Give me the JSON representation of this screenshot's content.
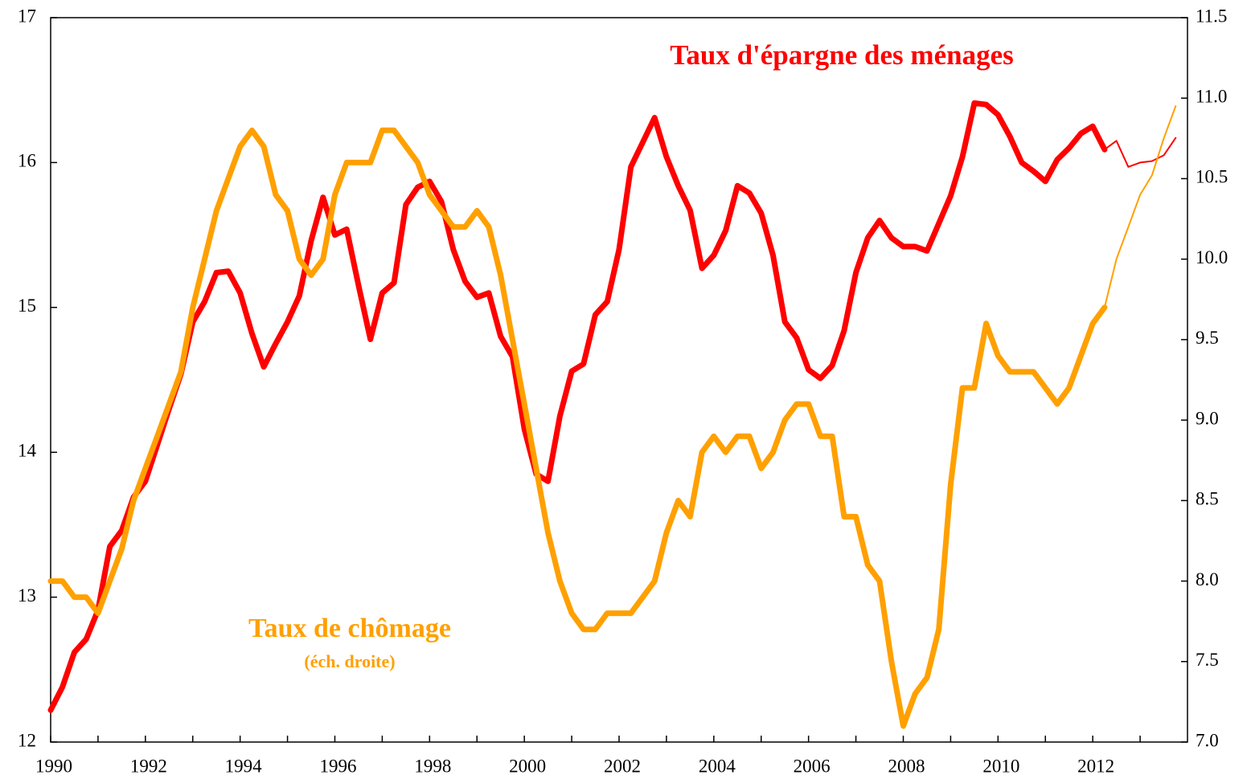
{
  "chart_data": {
    "type": "line",
    "annotations": {
      "savings": "Taux d'épargne des ménages",
      "unemployment": "Taux de chômage",
      "unemployment_note": "(éch. droite)"
    },
    "xlim": [
      1990,
      2014
    ],
    "xticks": [
      1990,
      1992,
      1994,
      1996,
      1998,
      2000,
      2002,
      2004,
      2006,
      2008,
      2010,
      2012
    ],
    "xminorticks": [
      1991,
      1993,
      1995,
      1997,
      1999,
      2001,
      2003,
      2005,
      2007,
      2009,
      2011,
      2013
    ],
    "ylim": [
      12,
      17
    ],
    "yticks": [
      12,
      13,
      14,
      15,
      16,
      17
    ],
    "y2lim": [
      7,
      11.5
    ],
    "y2ticks": [
      {
        "value": 7,
        "label": "7.0"
      },
      7.5,
      {
        "value": 8,
        "label": "8.0"
      },
      8.5,
      {
        "value": 9,
        "label": "9.0"
      },
      9.5,
      {
        "value": 10,
        "label": "10.0"
      },
      10.5,
      {
        "value": 11,
        "label": "11.0"
      },
      11.5
    ],
    "series": [
      {
        "name": "Taux d'épargne des ménages",
        "color": "#ff0000",
        "line_width": 7,
        "x": [
          1990,
          1990.25,
          1990.5,
          1990.75,
          1991,
          1991.25,
          1991.5,
          1991.75,
          1992,
          1992.25,
          1992.5,
          1992.75,
          1993,
          1993.25,
          1993.5,
          1993.75,
          1994,
          1994.25,
          1994.5,
          1994.75,
          1995,
          1995.25,
          1995.5,
          1995.75,
          1996,
          1996.25,
          1996.5,
          1996.75,
          1997,
          1997.25,
          1997.5,
          1997.75,
          1998,
          1998.25,
          1998.5,
          1998.75,
          1999,
          1999.25,
          1999.5,
          1999.75,
          2000,
          2000.25,
          2000.5,
          2000.75,
          2001,
          2001.25,
          2001.5,
          2001.75,
          2002,
          2002.25,
          2002.5,
          2002.75,
          2003,
          2003.25,
          2003.5,
          2003.75,
          2004,
          2004.25,
          2004.5,
          2004.75,
          2005,
          2005.25,
          2005.5,
          2005.75,
          2006,
          2006.25,
          2006.5,
          2006.75,
          2007,
          2007.25,
          2007.5,
          2007.75,
          2008,
          2008.25,
          2008.5,
          2008.75,
          2009,
          2009.25,
          2009.5,
          2009.75,
          2010,
          2010.25,
          2010.5,
          2010.75,
          2011,
          2011.25,
          2011.5,
          2011.75,
          2012,
          2012.25
        ],
        "values": [
          12.22,
          12.38,
          12.62,
          12.71,
          12.91,
          13.35,
          13.46,
          13.69,
          13.8,
          14.05,
          14.3,
          14.54,
          14.9,
          15.04,
          15.24,
          15.25,
          15.1,
          14.82,
          14.59,
          14.75,
          14.9,
          15.08,
          15.46,
          15.76,
          15.5,
          15.54,
          15.15,
          14.78,
          15.1,
          15.17,
          15.71,
          15.83,
          15.87,
          15.73,
          15.4,
          15.18,
          15.07,
          15.1,
          14.8,
          14.66,
          14.16,
          13.85,
          13.8,
          14.25,
          14.56,
          14.61,
          14.95,
          15.04,
          15.4,
          15.97,
          16.14,
          16.31,
          16.04,
          15.84,
          15.67,
          15.27,
          15.36,
          15.53,
          15.84,
          15.79,
          15.65,
          15.36,
          14.9,
          14.79,
          14.57,
          14.51,
          14.6,
          14.84,
          15.24,
          15.48,
          15.6,
          15.48,
          15.42,
          15.42,
          15.39,
          15.58,
          15.77,
          16.04,
          16.41,
          16.4,
          16.33,
          16.18,
          16,
          15.94,
          15.87,
          16.02,
          16.1,
          16.2,
          16.25,
          16.09
        ]
      },
      {
        "color": "#ff0000",
        "line_width": 2,
        "x": [
          2012.25,
          2012.5,
          2012.75,
          2013,
          2013.25,
          2013.5,
          2013.75
        ],
        "values": [
          16.09,
          16.15,
          15.97,
          16,
          16.01,
          16.05,
          16.17
        ]
      },
      {
        "name": "Taux de chômage",
        "color": "#ffa000",
        "line_width": 7,
        "axis": "y2",
        "x": [
          1990,
          1990.25,
          1990.5,
          1990.75,
          1991,
          1991.25,
          1991.5,
          1991.75,
          1992,
          1992.25,
          1992.5,
          1992.75,
          1993,
          1993.25,
          1993.5,
          1993.75,
          1994,
          1994.25,
          1994.5,
          1994.75,
          1995,
          1995.25,
          1995.5,
          1995.75,
          1996,
          1996.25,
          1996.5,
          1996.75,
          1997,
          1997.25,
          1997.5,
          1997.75,
          1998,
          1998.25,
          1998.5,
          1998.75,
          1999,
          1999.25,
          1999.5,
          1999.75,
          2000,
          2000.25,
          2000.5,
          2000.75,
          2001,
          2001.25,
          2001.5,
          2001.75,
          2002,
          2002.25,
          2002.5,
          2002.75,
          2003,
          2003.25,
          2003.5,
          2003.75,
          2004,
          2004.25,
          2004.5,
          2004.75,
          2005,
          2005.25,
          2005.5,
          2005.75,
          2006,
          2006.25,
          2006.5,
          2006.75,
          2007,
          2007.25,
          2007.5,
          2007.75,
          2008,
          2008.25,
          2008.5,
          2008.75,
          2009,
          2009.25,
          2009.5,
          2009.75,
          2010,
          2010.25,
          2010.5,
          2010.75,
          2011,
          2011.25,
          2011.5,
          2011.75,
          2012,
          2012.25
        ],
        "values": [
          8,
          8,
          7.9,
          7.9,
          7.8,
          8,
          8.2,
          8.5,
          8.7,
          8.9,
          9.1,
          9.3,
          9.7,
          10,
          10.3,
          10.5,
          10.7,
          10.8,
          10.7,
          10.4,
          10.3,
          10,
          9.9,
          10,
          10.4,
          10.6,
          10.6,
          10.6,
          10.8,
          10.8,
          10.7,
          10.6,
          10.4,
          10.3,
          10.2,
          10.2,
          10.3,
          10.2,
          9.9,
          9.5,
          9.1,
          8.7,
          8.3,
          8,
          7.8,
          7.7,
          7.7,
          7.8,
          7.8,
          7.8,
          7.9,
          8,
          8.3,
          8.5,
          8.4,
          8.8,
          8.9,
          8.8,
          8.9,
          8.9,
          8.7,
          8.8,
          9,
          9.1,
          9.1,
          8.9,
          8.9,
          8.4,
          8.4,
          8.1,
          8,
          7.5,
          7.1,
          7.3,
          7.4,
          7.7,
          8.6,
          9.2,
          9.2,
          9.6,
          9.4,
          9.3,
          9.3,
          9.3,
          9.2,
          9.1,
          9.2,
          9.4,
          9.6,
          9.7
        ]
      },
      {
        "color": "#ffa000",
        "line_width": 2,
        "axis": "y2",
        "x": [
          2012.25,
          2012.5,
          2012.75,
          2013,
          2013.25,
          2013.5,
          2013.75
        ],
        "values": [
          9.7,
          10,
          10.2,
          10.4,
          10.52,
          10.75,
          10.95
        ]
      }
    ]
  }
}
